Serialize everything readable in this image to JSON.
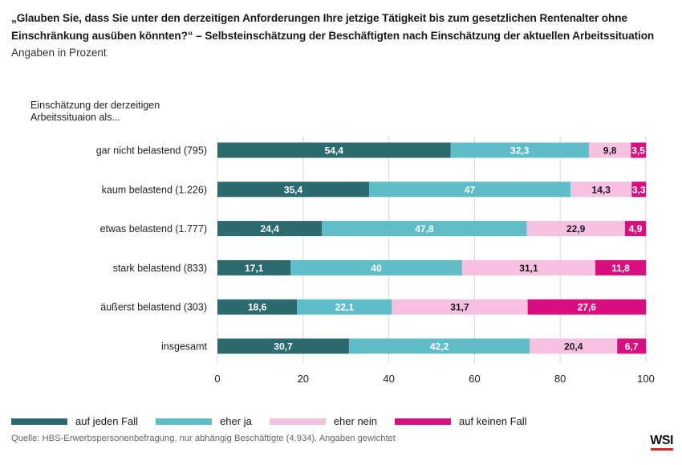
{
  "header": {
    "title": "„Glauben Sie, dass Sie unter den derzeitigen Anforderungen Ihre jetzige Tätigkeit bis zum gesetzlichen Rentenalter ohne Einschränkung ausüben könnten?“ – Selbsteinschätzung der Beschäftigten nach Einschätzung der aktuellen Arbeitssituation",
    "subtitle": "Angaben in Prozent"
  },
  "category_header": [
    "Einschätzung der derzeitigen",
    "Arbeitssituaion als..."
  ],
  "chart_data": {
    "type": "bar",
    "orientation": "horizontal",
    "stacked": true,
    "categories": [
      "gar nicht belastend (795)",
      "kaum belastend (1.226)",
      "etwas belastend (1.777)",
      "stark belastend (833)",
      "äußerst belastend (303)",
      "insgesamt"
    ],
    "series": [
      {
        "name": "auf jeden Fall",
        "color": "#2b6b70",
        "label_color": "#ffffff",
        "values": [
          54.4,
          35.4,
          24.4,
          17.1,
          18.6,
          30.7
        ]
      },
      {
        "name": "eher ja",
        "color": "#5fbdc8",
        "label_color": "#ffffff",
        "values": [
          32.3,
          47,
          47.8,
          40,
          22.1,
          42.2
        ]
      },
      {
        "name": "eher nein",
        "color": "#f6c1e0",
        "label_color": "#1a1a1a",
        "values": [
          9.8,
          14.3,
          22.9,
          31.1,
          31.7,
          20.4
        ]
      },
      {
        "name": "auf keinen Fall",
        "color": "#d90f7f",
        "label_color": "#ffffff",
        "values": [
          3.5,
          3.3,
          4.9,
          11.8,
          27.6,
          6.7
        ]
      }
    ],
    "value_labels": [
      [
        "54,4",
        "35,4",
        "24,4",
        "17,1",
        "18,6",
        "30,7"
      ],
      [
        "32,3",
        "47",
        "47,8",
        "40",
        "22,1",
        "42,2"
      ],
      [
        "9,8",
        "14,3",
        "22,9",
        "31,1",
        "31,7",
        "20,4"
      ],
      [
        "3,5",
        "3,3",
        "4,9",
        "11,8",
        "27,6",
        "6,7"
      ]
    ],
    "xlim": [
      0,
      100
    ],
    "xticks": [
      0,
      20,
      40,
      60,
      80,
      100
    ],
    "xtick_labels": [
      "0",
      "20",
      "40",
      "60",
      "80",
      "100"
    ],
    "grid": true,
    "legend_position": "bottom-left"
  },
  "footer": {
    "source": "Quelle: HBS-Erwerbspersonenbefragung, nur abhängig Beschäftigte (4.934), Angaben gewichtet",
    "logo": "WSI"
  }
}
